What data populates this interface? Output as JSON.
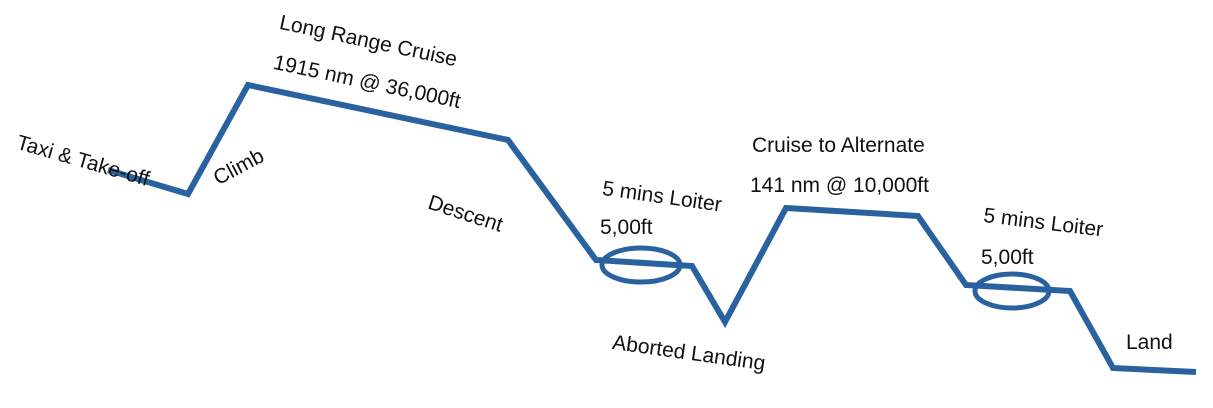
{
  "colors": {
    "path": "#2a62a0",
    "text": "#111111",
    "background": "#ffffff"
  },
  "labels": {
    "taxi": "Taxi & Take-off",
    "climb": "Climb",
    "cruise_title": "Long Range Cruise",
    "cruise_detail": "1915 nm @ 36,000ft",
    "descent": "Descent",
    "loiter1_title": "5 mins Loiter",
    "loiter1_alt": "5,00ft",
    "aborted": "Aborted Landing",
    "alt_cruise_title": "Cruise to Alternate",
    "alt_cruise_detail": "141 nm @ 10,000ft",
    "loiter2_title": "5 mins Loiter",
    "loiter2_alt": "5,00ft",
    "land": "Land"
  }
}
